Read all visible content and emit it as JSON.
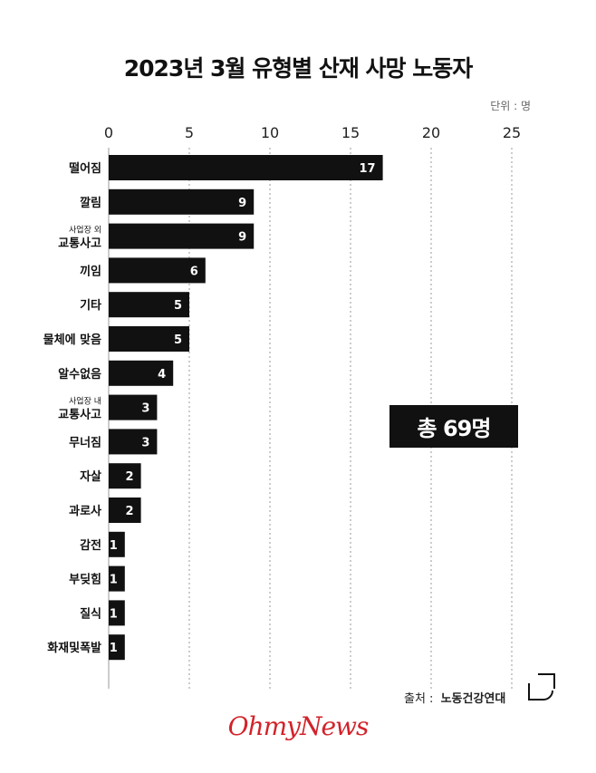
{
  "title": "2023년 3월 유형별 산재 사망 노동자",
  "unit": "단위 : 명",
  "total": "총 69명",
  "source": {
    "label": "출처 :",
    "name": "노동건강연대"
  },
  "brand": "OhmyNews",
  "colors": {
    "bar": "#111111",
    "grid": "#999999",
    "brand": "#d2232a"
  },
  "chart_data": {
    "type": "bar",
    "orientation": "horizontal",
    "xlim": [
      0,
      25
    ],
    "ticks": [
      0,
      5,
      10,
      15,
      20,
      25
    ],
    "grid": true,
    "categories": [
      {
        "label": "떨어짐",
        "value": 17
      },
      {
        "label": "깔림",
        "value": 9
      },
      {
        "label": "교통사고",
        "sublabel": "사업장 외",
        "value": 9
      },
      {
        "label": "끼임",
        "value": 6
      },
      {
        "label": "기타",
        "value": 5
      },
      {
        "label": "물체에 맞음",
        "value": 5
      },
      {
        "label": "알수없음",
        "value": 4
      },
      {
        "label": "교통사고",
        "sublabel": "사업장 내",
        "value": 3
      },
      {
        "label": "무너짐",
        "value": 3
      },
      {
        "label": "자살",
        "value": 2
      },
      {
        "label": "과로사",
        "value": 2
      },
      {
        "label": "감전",
        "value": 1
      },
      {
        "label": "부딪힘",
        "value": 1
      },
      {
        "label": "질식",
        "value": 1
      },
      {
        "label": "화재및폭발",
        "value": 1
      }
    ]
  }
}
